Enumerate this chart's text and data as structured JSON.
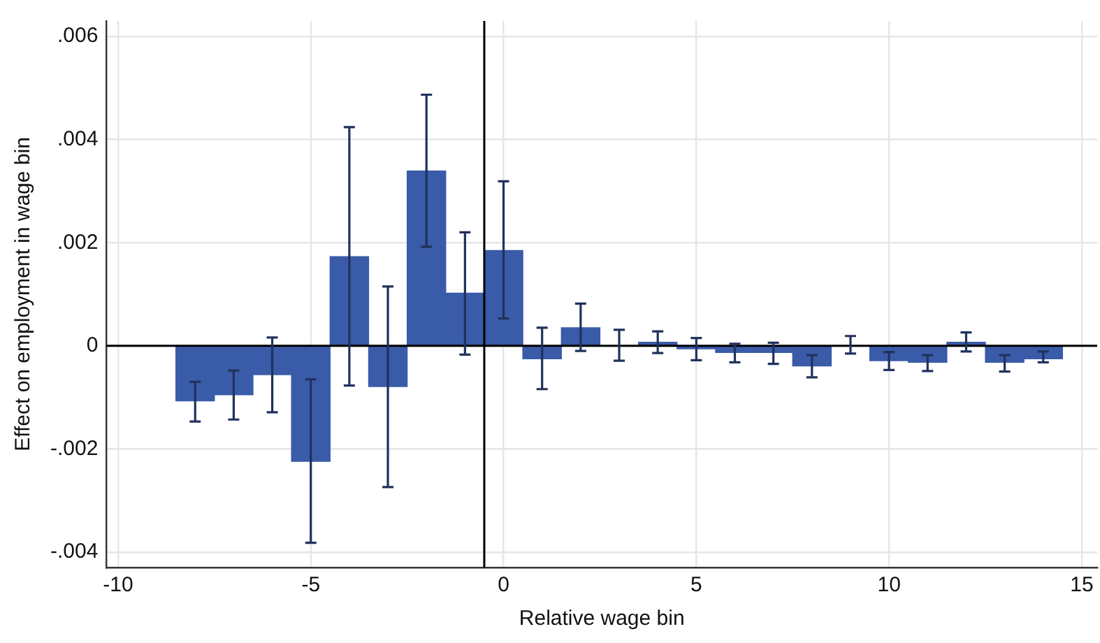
{
  "chart_data": {
    "type": "bar",
    "xlabel": "Relative wage bin",
    "ylabel": "Effect on employment in wage bin",
    "x": [
      -8,
      -7,
      -6,
      -5,
      -4,
      -3,
      -2,
      -1,
      0,
      1,
      2,
      3,
      4,
      5,
      6,
      7,
      8,
      9,
      10,
      11,
      12,
      13,
      14
    ],
    "values": [
      -0.00107,
      -0.00095,
      -0.00056,
      -0.00224,
      0.00173,
      -0.00079,
      0.00339,
      0.00102,
      0.00185,
      -0.00025,
      0.00035,
      0,
      7e-05,
      -6e-05,
      -0.00013,
      -0.00013,
      -0.00039,
      0,
      -0.00029,
      -0.00032,
      7e-05,
      -0.00032,
      -0.00025
    ],
    "errors": [
      [
        -0.00147,
        -0.0007
      ],
      [
        -0.00143,
        -0.00048
      ],
      [
        -0.00129,
        0.00016
      ],
      [
        -0.00382,
        -0.00065
      ],
      [
        -0.00077,
        0.00424
      ],
      [
        -0.00274,
        0.00115
      ],
      [
        0.00192,
        0.00487
      ],
      [
        -0.00017,
        0.0022
      ],
      [
        0.00053,
        0.00319
      ],
      [
        -0.00084,
        0.00035
      ],
      [
        -0.0001,
        0.00082
      ],
      [
        -0.00029,
        0.00031
      ],
      [
        -0.00014,
        0.00028
      ],
      [
        -0.00028,
        0.00015
      ],
      [
        -0.00032,
        4e-05
      ],
      [
        -0.00035,
        6e-05
      ],
      [
        -0.00061,
        -0.00018
      ],
      [
        -0.00015,
        0.00019
      ],
      [
        -0.00047,
        -0.00012
      ],
      [
        -0.00049,
        -0.00018
      ],
      [
        -0.00011,
        0.00026
      ],
      [
        -0.0005,
        -0.00018
      ],
      [
        -0.00032,
        -0.00011
      ]
    ],
    "color": "#3a5ba8",
    "xlim": [
      -10.3,
      15.4
    ],
    "xticks": [
      -10,
      -5,
      0,
      5,
      10,
      15
    ],
    "ylim": [
      -0.0043,
      0.0063
    ],
    "yticks": [
      {
        "value": -0.004,
        "label": "-.004"
      },
      {
        "value": -0.002,
        "label": "-.002"
      },
      0,
      {
        "value": 0.002,
        "label": ".002"
      },
      {
        "value": 0.004,
        "label": ".004"
      },
      {
        "value": 0.006,
        "label": ".006"
      }
    ],
    "ref_lines": [
      {
        "axis": "y",
        "value": 0,
        "color": "#000000"
      },
      {
        "axis": "x",
        "value": -0.5,
        "color": "#000000"
      }
    ],
    "grid": true,
    "legend": false
  }
}
